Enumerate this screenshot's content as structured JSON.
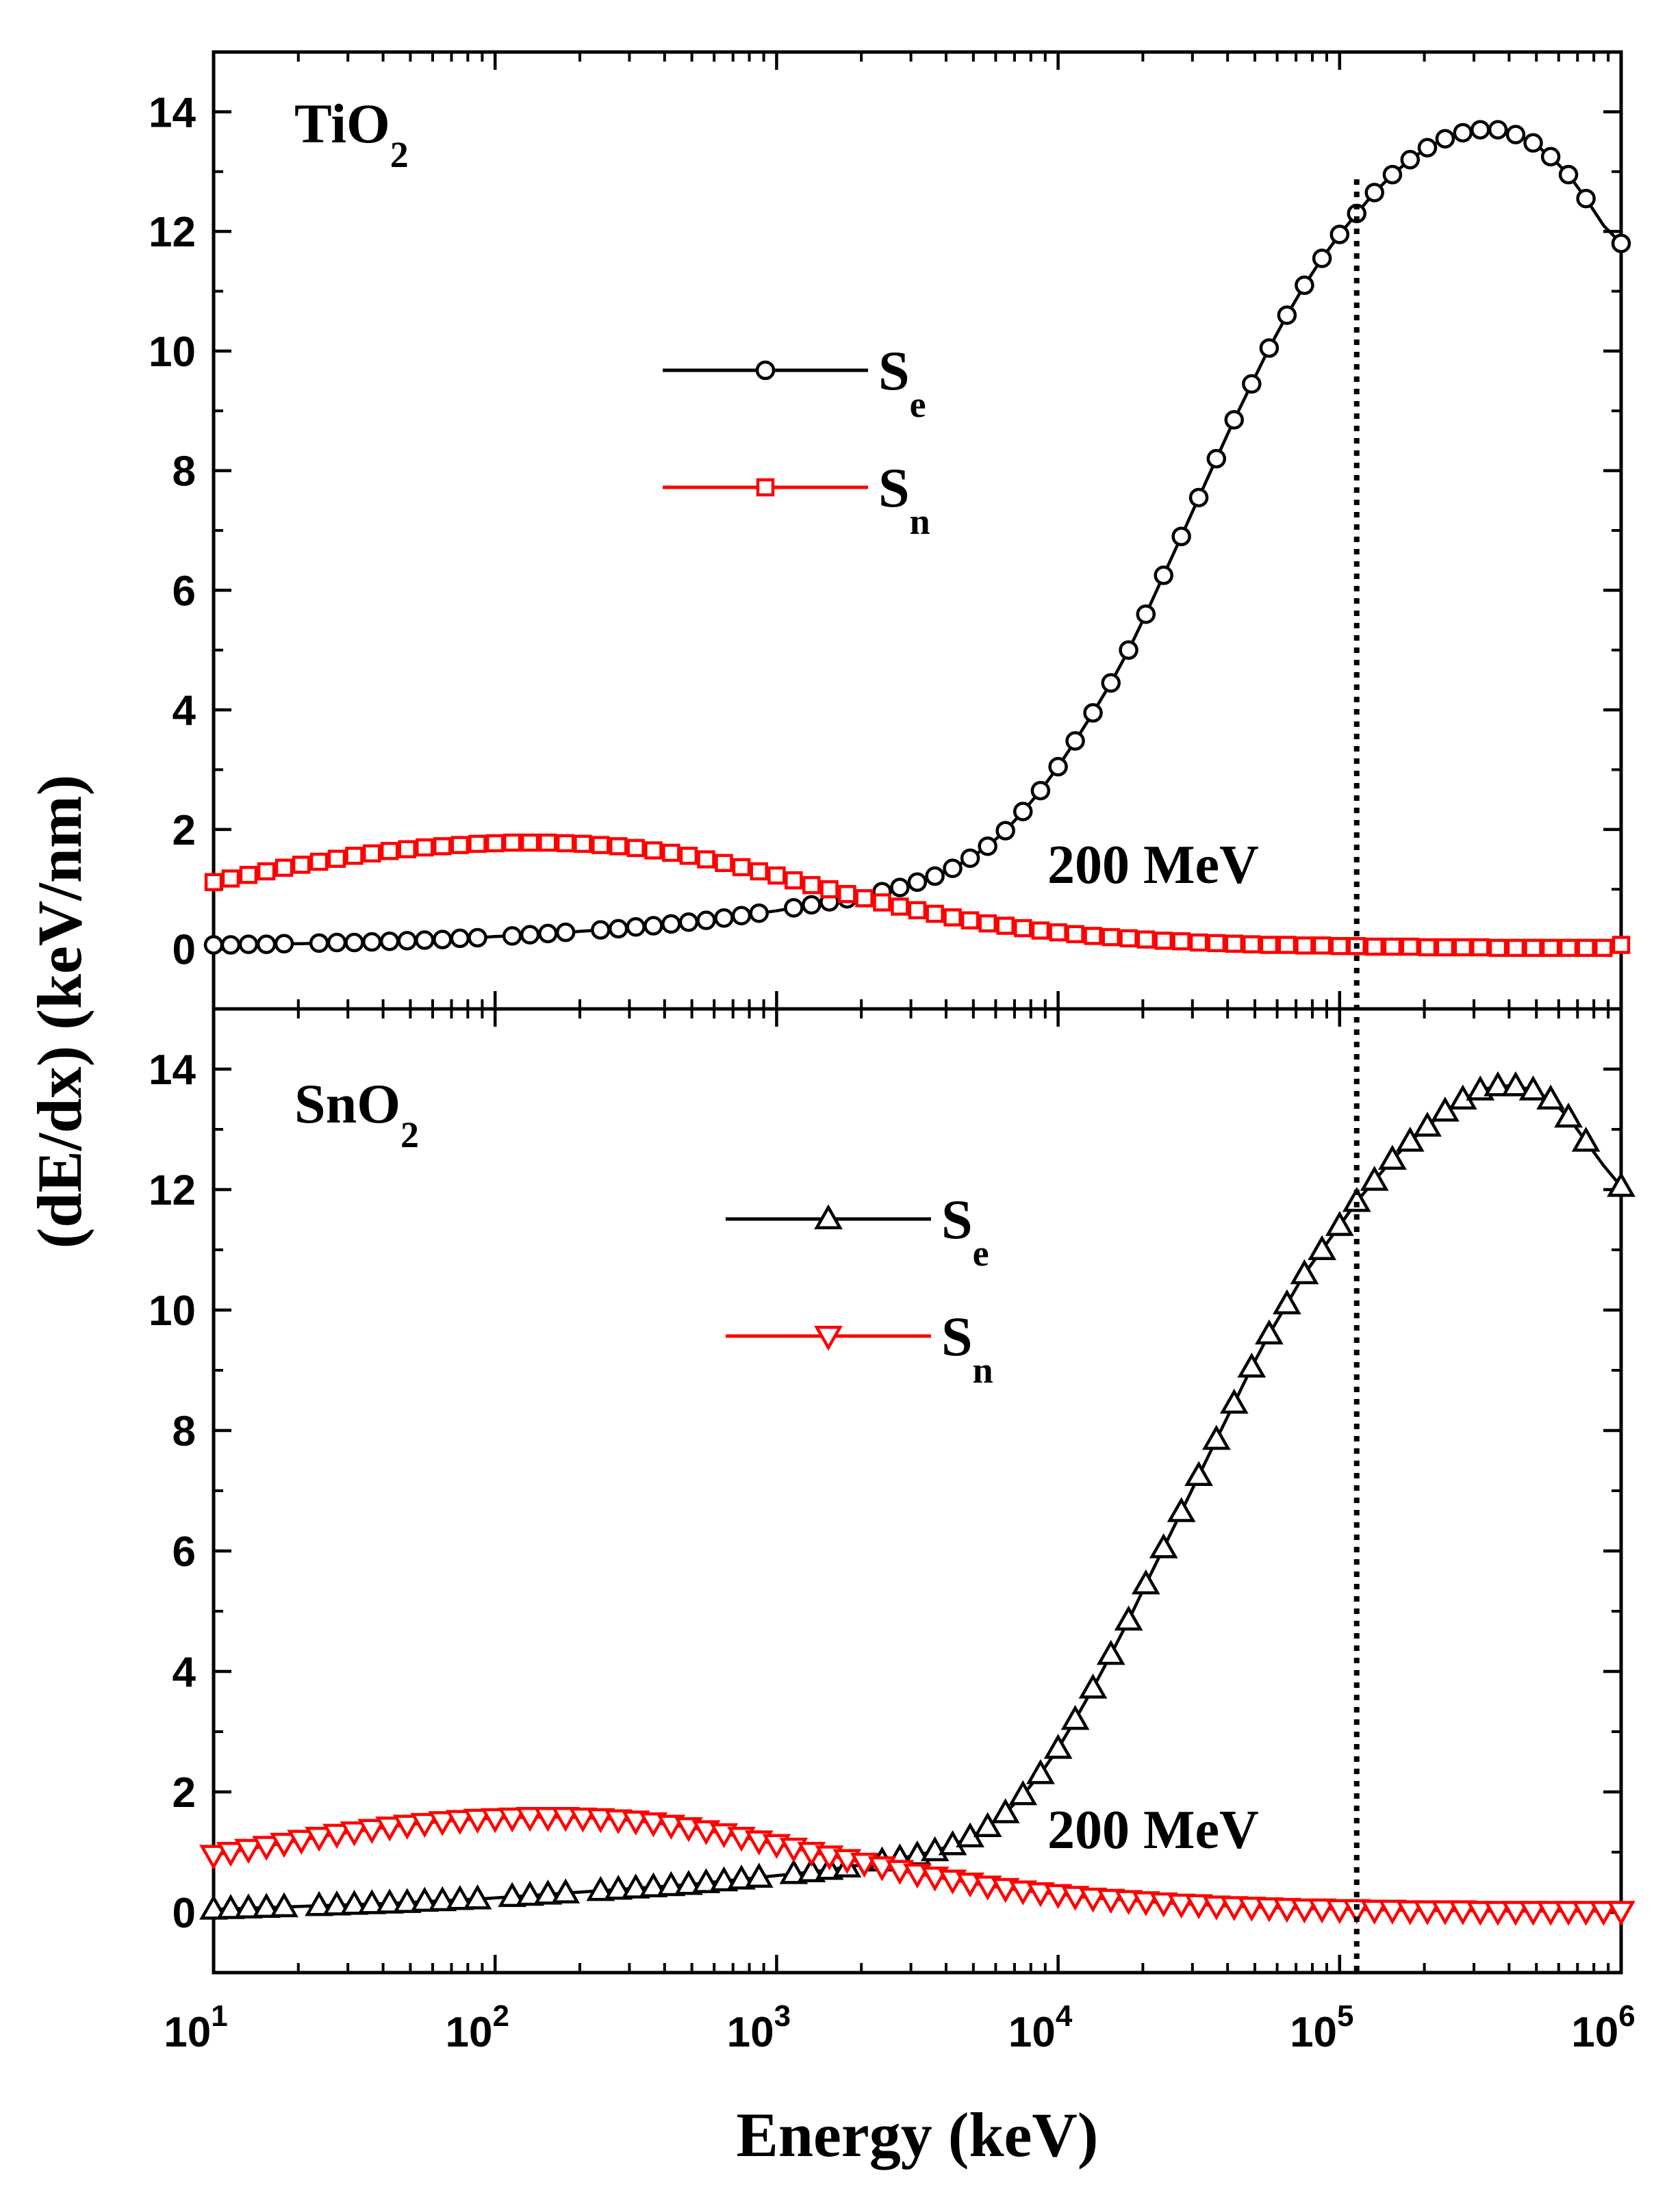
{
  "chart_data": [
    {
      "type": "line",
      "panel": "top",
      "label": "TiO",
      "label_subscript": "2",
      "xscale": "log",
      "xlim": [
        10,
        1000000
      ],
      "ylim": [
        -1,
        15
      ],
      "yticks": [
        0,
        2,
        4,
        6,
        8,
        10,
        12,
        14
      ],
      "annotation": "200 MeV",
      "vline_x": 115000,
      "series": [
        {
          "name": "Se",
          "base": "S",
          "sub": "e",
          "color": "#000000",
          "marker": "circle",
          "x": [
            10,
            11.5,
            13.3,
            15.4,
            17.8,
            20.5,
            23.7,
            27.4,
            31.6,
            36.5,
            42.2,
            48.7,
            56.2,
            65,
            75,
            86.6,
            100,
            115,
            133,
            154,
            178,
            205,
            237,
            274,
            316,
            365,
            422,
            487,
            562,
            650,
            750,
            866,
            1000,
            1150,
            1330,
            1540,
            1780,
            2050,
            2370,
            2740,
            3160,
            3650,
            4220,
            4870,
            5620,
            6500,
            7500,
            8660,
            10000,
            11500,
            13300,
            15400,
            17800,
            20500,
            23700,
            27400,
            31600,
            36500,
            42200,
            48700,
            56200,
            65000,
            75000,
            86600,
            100000,
            115000,
            133000,
            154000,
            178000,
            205000,
            237000,
            274000,
            316000,
            365000,
            422000,
            487000,
            562000,
            650000,
            750000,
            866000,
            1000000
          ],
          "y": [
            0.07,
            0.07,
            0.08,
            0.08,
            0.09,
            0.09,
            0.1,
            0.11,
            0.11,
            0.12,
            0.13,
            0.14,
            0.15,
            0.16,
            0.18,
            0.19,
            0.21,
            0.22,
            0.24,
            0.26,
            0.28,
            0.3,
            0.32,
            0.34,
            0.37,
            0.39,
            0.42,
            0.45,
            0.48,
            0.52,
            0.56,
            0.6,
            0.64,
            0.69,
            0.74,
            0.79,
            0.84,
            0.9,
            0.96,
            1.03,
            1.12,
            1.22,
            1.35,
            1.52,
            1.72,
            1.98,
            2.3,
            2.65,
            3.05,
            3.48,
            3.95,
            4.45,
            5.0,
            5.6,
            6.25,
            6.9,
            7.55,
            8.2,
            8.85,
            9.45,
            10.05,
            10.6,
            11.1,
            11.55,
            11.95,
            12.3,
            12.65,
            12.95,
            13.2,
            13.4,
            13.55,
            13.65,
            13.7,
            13.7,
            13.62,
            13.48,
            13.25,
            12.95,
            12.55,
            12.1,
            11.8
          ],
          "marker_x": [
            10,
            11.5,
            13.3,
            15.4,
            17.8,
            23.7,
            27.4,
            31.6,
            36.5,
            42.2,
            48.7,
            56.2,
            65,
            75,
            86.6,
            115,
            133,
            154,
            178,
            237,
            274,
            316,
            365,
            422,
            487,
            562,
            650,
            750,
            866,
            1150,
            1330,
            1540,
            1780,
            2370,
            2740,
            3160,
            3650,
            4220,
            4870,
            5620,
            6500,
            7500,
            8660,
            10000,
            11500,
            13300,
            15400,
            17800,
            20500,
            23700,
            27400,
            31600,
            36500,
            42200,
            48700,
            56200,
            65000,
            75000,
            86600,
            100000,
            115000,
            133000,
            154000,
            178000,
            205000,
            237000,
            274000,
            316000,
            365000,
            422000,
            487000,
            562000,
            650000,
            750000,
            1000000
          ],
          "marker_y": [
            0.07,
            0.07,
            0.08,
            0.08,
            0.09,
            0.1,
            0.11,
            0.11,
            0.12,
            0.13,
            0.14,
            0.15,
            0.16,
            0.18,
            0.19,
            0.22,
            0.24,
            0.26,
            0.28,
            0.32,
            0.34,
            0.37,
            0.39,
            0.42,
            0.45,
            0.48,
            0.52,
            0.56,
            0.6,
            0.69,
            0.74,
            0.79,
            0.84,
            0.96,
            1.03,
            1.12,
            1.22,
            1.35,
            1.52,
            1.72,
            1.98,
            2.3,
            2.65,
            3.05,
            3.48,
            3.95,
            4.45,
            5.0,
            5.6,
            6.25,
            6.9,
            7.55,
            8.2,
            8.85,
            9.45,
            10.05,
            10.6,
            11.1,
            11.55,
            11.95,
            12.3,
            12.65,
            12.95,
            13.2,
            13.4,
            13.55,
            13.65,
            13.7,
            13.7,
            13.62,
            13.48,
            13.25,
            12.95,
            12.55,
            11.8
          ]
        },
        {
          "name": "Sn",
          "base": "S",
          "sub": "n",
          "color": "#ff0000",
          "marker": "square",
          "x": [
            10,
            11.5,
            13.3,
            15.4,
            17.8,
            20.5,
            23.7,
            27.4,
            31.6,
            36.5,
            42.2,
            48.7,
            56.2,
            65,
            75,
            86.6,
            100,
            115,
            133,
            154,
            178,
            205,
            237,
            274,
            316,
            365,
            422,
            487,
            562,
            650,
            750,
            866,
            1000,
            1150,
            1330,
            1540,
            1780,
            2050,
            2370,
            2740,
            3160,
            3650,
            4220,
            4870,
            5620,
            6500,
            7500,
            8660,
            10000,
            11500,
            13300,
            15400,
            17800,
            20500,
            23700,
            27400,
            31600,
            36500,
            42200,
            48700,
            56200,
            65000,
            75000,
            86600,
            100000,
            115000,
            133000,
            154000,
            178000,
            205000,
            237000,
            274000,
            316000,
            365000,
            422000,
            487000,
            562000,
            650000,
            750000,
            866000,
            1000000
          ],
          "y": [
            1.12,
            1.18,
            1.24,
            1.3,
            1.36,
            1.41,
            1.46,
            1.51,
            1.56,
            1.6,
            1.64,
            1.67,
            1.7,
            1.72,
            1.74,
            1.76,
            1.77,
            1.78,
            1.78,
            1.78,
            1.77,
            1.76,
            1.74,
            1.72,
            1.69,
            1.65,
            1.61,
            1.56,
            1.5,
            1.44,
            1.37,
            1.3,
            1.23,
            1.15,
            1.07,
            1.0,
            0.92,
            0.85,
            0.78,
            0.71,
            0.65,
            0.59,
            0.53,
            0.48,
            0.43,
            0.39,
            0.35,
            0.31,
            0.28,
            0.25,
            0.22,
            0.2,
            0.18,
            0.16,
            0.14,
            0.13,
            0.11,
            0.1,
            0.09,
            0.08,
            0.07,
            0.07,
            0.06,
            0.06,
            0.05,
            0.05,
            0.04,
            0.04,
            0.04,
            0.03,
            0.03,
            0.03,
            0.03,
            0.02,
            0.02,
            0.02,
            0.02,
            0.02,
            0.02,
            0.02,
            0.07
          ]
        }
      ]
    },
    {
      "type": "line",
      "panel": "bottom",
      "label": "SnO",
      "label_subscript": "2",
      "xscale": "log",
      "xlim": [
        10,
        1000000
      ],
      "ylim": [
        -1,
        15
      ],
      "yticks": [
        0,
        2,
        4,
        6,
        8,
        10,
        12,
        14
      ],
      "annotation": "200 MeV",
      "vline_x": 115000,
      "series": [
        {
          "name": "Se",
          "base": "S",
          "sub": "e",
          "color": "#000000",
          "marker": "triangle-up",
          "x": [
            10,
            11.5,
            13.3,
            15.4,
            17.8,
            20.5,
            23.7,
            27.4,
            31.6,
            36.5,
            42.2,
            48.7,
            56.2,
            65,
            75,
            86.6,
            100,
            115,
            133,
            154,
            178,
            205,
            237,
            274,
            316,
            365,
            422,
            487,
            562,
            650,
            750,
            866,
            1000,
            1150,
            1330,
            1540,
            1780,
            2050,
            2370,
            2740,
            3160,
            3650,
            4220,
            4870,
            5620,
            6500,
            7500,
            8660,
            10000,
            11500,
            13300,
            15400,
            17800,
            20500,
            23700,
            27400,
            31600,
            36500,
            42200,
            48700,
            56200,
            65000,
            75000,
            86600,
            100000,
            115000,
            133000,
            154000,
            178000,
            205000,
            237000,
            274000,
            316000,
            365000,
            422000,
            487000,
            562000,
            650000,
            750000,
            866000,
            1000000
          ],
          "y": [
            0.05,
            0.06,
            0.07,
            0.08,
            0.09,
            0.1,
            0.11,
            0.12,
            0.13,
            0.14,
            0.15,
            0.16,
            0.18,
            0.19,
            0.21,
            0.22,
            0.24,
            0.26,
            0.28,
            0.3,
            0.32,
            0.34,
            0.36,
            0.38,
            0.4,
            0.42,
            0.44,
            0.46,
            0.49,
            0.52,
            0.55,
            0.58,
            0.61,
            0.64,
            0.67,
            0.71,
            0.75,
            0.8,
            0.85,
            0.9,
            0.95,
            1.02,
            1.12,
            1.25,
            1.42,
            1.65,
            1.95,
            2.3,
            2.72,
            3.2,
            3.72,
            4.28,
            4.85,
            5.45,
            6.05,
            6.65,
            7.25,
            7.85,
            8.45,
            9.05,
            9.6,
            10.1,
            10.6,
            11.0,
            11.4,
            11.8,
            12.15,
            12.5,
            12.8,
            13.05,
            13.3,
            13.5,
            13.65,
            13.72,
            13.72,
            13.65,
            13.5,
            13.2,
            12.8,
            12.4,
            12.05
          ],
          "marker_x": [
            10,
            11.5,
            13.3,
            15.4,
            17.8,
            23.7,
            27.4,
            31.6,
            36.5,
            42.2,
            48.7,
            56.2,
            65,
            75,
            86.6,
            115,
            133,
            154,
            178,
            237,
            274,
            316,
            365,
            422,
            487,
            562,
            650,
            750,
            866,
            1150,
            1330,
            1540,
            1780,
            2370,
            2740,
            3160,
            3650,
            4220,
            4870,
            5620,
            6500,
            7500,
            8660,
            10000,
            11500,
            13300,
            15400,
            17800,
            20500,
            23700,
            27400,
            31600,
            36500,
            42200,
            48700,
            56200,
            65000,
            75000,
            86600,
            100000,
            115000,
            133000,
            154000,
            178000,
            205000,
            237000,
            274000,
            316000,
            365000,
            422000,
            487000,
            562000,
            650000,
            750000,
            1000000
          ],
          "marker_y": [
            0.05,
            0.06,
            0.07,
            0.08,
            0.09,
            0.11,
            0.12,
            0.13,
            0.14,
            0.15,
            0.16,
            0.18,
            0.19,
            0.21,
            0.22,
            0.26,
            0.28,
            0.3,
            0.32,
            0.36,
            0.38,
            0.4,
            0.42,
            0.44,
            0.46,
            0.49,
            0.52,
            0.55,
            0.58,
            0.64,
            0.67,
            0.71,
            0.75,
            0.85,
            0.9,
            0.95,
            1.02,
            1.12,
            1.25,
            1.42,
            1.65,
            1.95,
            2.3,
            2.72,
            3.2,
            3.72,
            4.28,
            4.85,
            5.45,
            6.05,
            6.65,
            7.25,
            7.85,
            8.45,
            9.05,
            9.6,
            10.1,
            10.6,
            11.0,
            11.4,
            11.8,
            12.15,
            12.5,
            12.8,
            13.05,
            13.3,
            13.5,
            13.65,
            13.72,
            13.72,
            13.65,
            13.5,
            13.2,
            12.8,
            12.05
          ]
        },
        {
          "name": "Sn",
          "base": "S",
          "sub": "n",
          "color": "#ff0000",
          "marker": "triangle-down",
          "x": [
            10,
            11.5,
            13.3,
            15.4,
            17.8,
            20.5,
            23.7,
            27.4,
            31.6,
            36.5,
            42.2,
            48.7,
            56.2,
            65,
            75,
            86.6,
            100,
            115,
            133,
            154,
            178,
            205,
            237,
            274,
            316,
            365,
            422,
            487,
            562,
            650,
            750,
            866,
            1000,
            1150,
            1330,
            1540,
            1780,
            2050,
            2370,
            2740,
            3160,
            3650,
            4220,
            4870,
            5620,
            6500,
            7500,
            8660,
            10000,
            11500,
            13300,
            15400,
            17800,
            20500,
            23700,
            27400,
            31600,
            36500,
            42200,
            48700,
            56200,
            65000,
            75000,
            86600,
            100000,
            115000,
            133000,
            154000,
            178000,
            205000,
            237000,
            274000,
            316000,
            365000,
            422000,
            487000,
            562000,
            650000,
            750000,
            866000,
            1000000
          ],
          "y": [
            0.95,
            1.0,
            1.05,
            1.1,
            1.15,
            1.2,
            1.25,
            1.3,
            1.34,
            1.38,
            1.42,
            1.45,
            1.48,
            1.51,
            1.53,
            1.55,
            1.56,
            1.57,
            1.58,
            1.58,
            1.58,
            1.57,
            1.56,
            1.54,
            1.52,
            1.49,
            1.45,
            1.41,
            1.36,
            1.31,
            1.25,
            1.19,
            1.13,
            1.07,
            1.0,
            0.94,
            0.88,
            0.82,
            0.76,
            0.7,
            0.64,
            0.59,
            0.54,
            0.49,
            0.44,
            0.4,
            0.36,
            0.33,
            0.3,
            0.27,
            0.24,
            0.22,
            0.2,
            0.18,
            0.16,
            0.14,
            0.13,
            0.11,
            0.1,
            0.09,
            0.08,
            0.07,
            0.06,
            0.06,
            0.05,
            0.05,
            0.04,
            0.04,
            0.03,
            0.03,
            0.03,
            0.03,
            0.02,
            0.02,
            0.02,
            0.02,
            0.02,
            0.02,
            0.02,
            0.02,
            0.02
          ]
        }
      ]
    }
  ],
  "axes": {
    "xlabel": "Energy (keV)",
    "ylabel": "(dE/dx) (keV/nm)",
    "xticks": [
      {
        "value": 10,
        "base": "10",
        "exp": "1"
      },
      {
        "value": 100,
        "base": "10",
        "exp": "2"
      },
      {
        "value": 1000,
        "base": "10",
        "exp": "3"
      },
      {
        "value": 10000,
        "base": "10",
        "exp": "4"
      },
      {
        "value": 100000,
        "base": "10",
        "exp": "5"
      },
      {
        "value": 1000000,
        "base": "10",
        "exp": "6"
      }
    ]
  }
}
